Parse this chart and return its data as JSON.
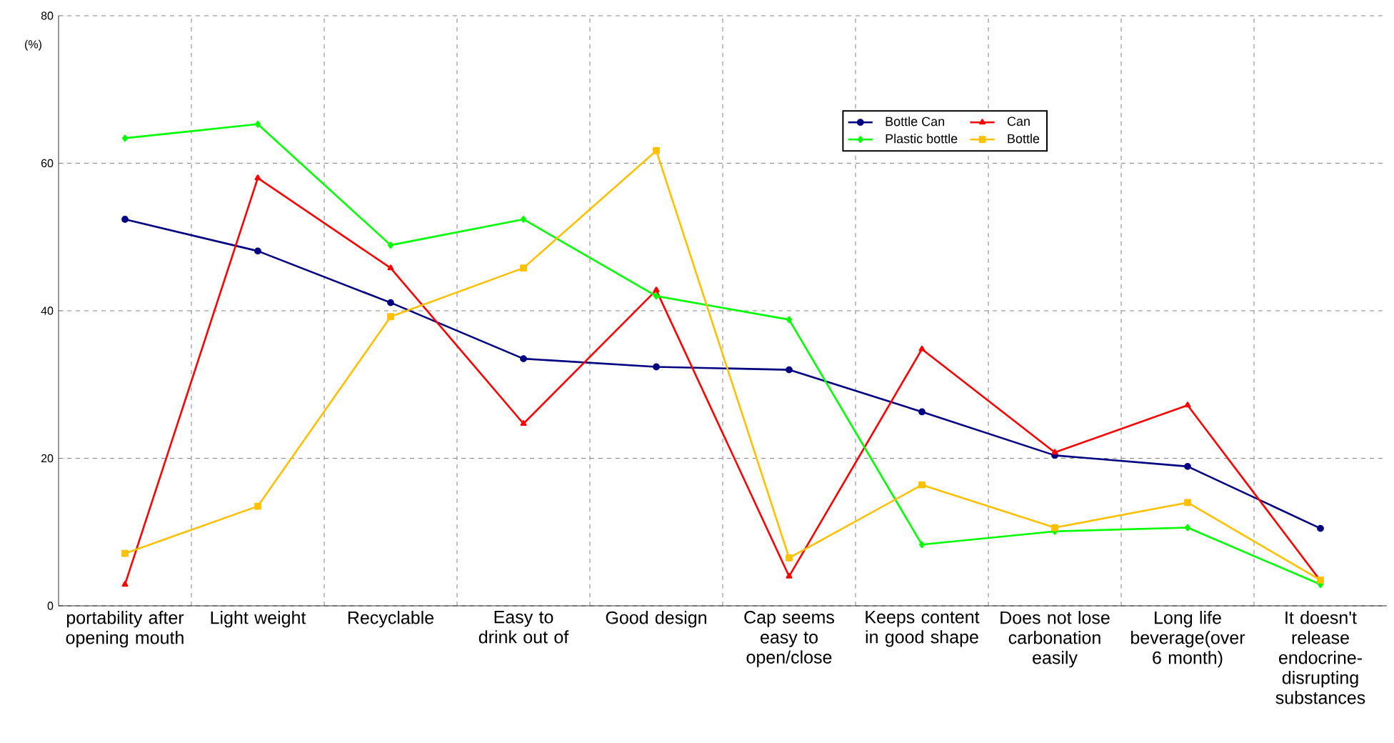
{
  "chart_data": {
    "type": "line",
    "ylabel": "(%)",
    "categories": [
      "portability after opening mouth",
      "Light weight",
      "Recyclable",
      "Easy to drink out of",
      "Good design",
      "Cap seems easy to open/close",
      "Keeps content in good shape",
      "Does not lose carbonation easily",
      "Long life beverage(over 6 month)",
      "It doesn't release endocrine-disrupting substances"
    ],
    "series": [
      {
        "name": "Bottle Can",
        "color": "#000080",
        "marker": "circle",
        "values": [
          52.4,
          48.1,
          41.1,
          33.5,
          32.4,
          32.0,
          26.3,
          20.4,
          18.9,
          10.5
        ]
      },
      {
        "name": "Can",
        "color": "#ff0000",
        "marker": "triangle",
        "values": [
          2.9,
          58.0,
          45.8,
          24.7,
          42.8,
          4.0,
          34.8,
          20.8,
          27.2,
          3.4
        ]
      },
      {
        "name": "Plastic bottle",
        "color": "#00ff00",
        "marker": "diamond",
        "values": [
          63.4,
          65.3,
          48.9,
          52.4,
          42.0,
          38.8,
          8.3,
          10.1,
          10.6,
          2.9
        ]
      },
      {
        "name": "Bottle",
        "color": "#ffc000",
        "marker": "square",
        "values": [
          7.1,
          13.5,
          39.2,
          45.8,
          61.7,
          6.5,
          16.4,
          10.6,
          14.0,
          3.5
        ]
      }
    ],
    "ylim": [
      0,
      80
    ],
    "yticks": [
      0,
      20,
      40,
      60,
      80
    ],
    "grid": true,
    "legend": "top right"
  }
}
